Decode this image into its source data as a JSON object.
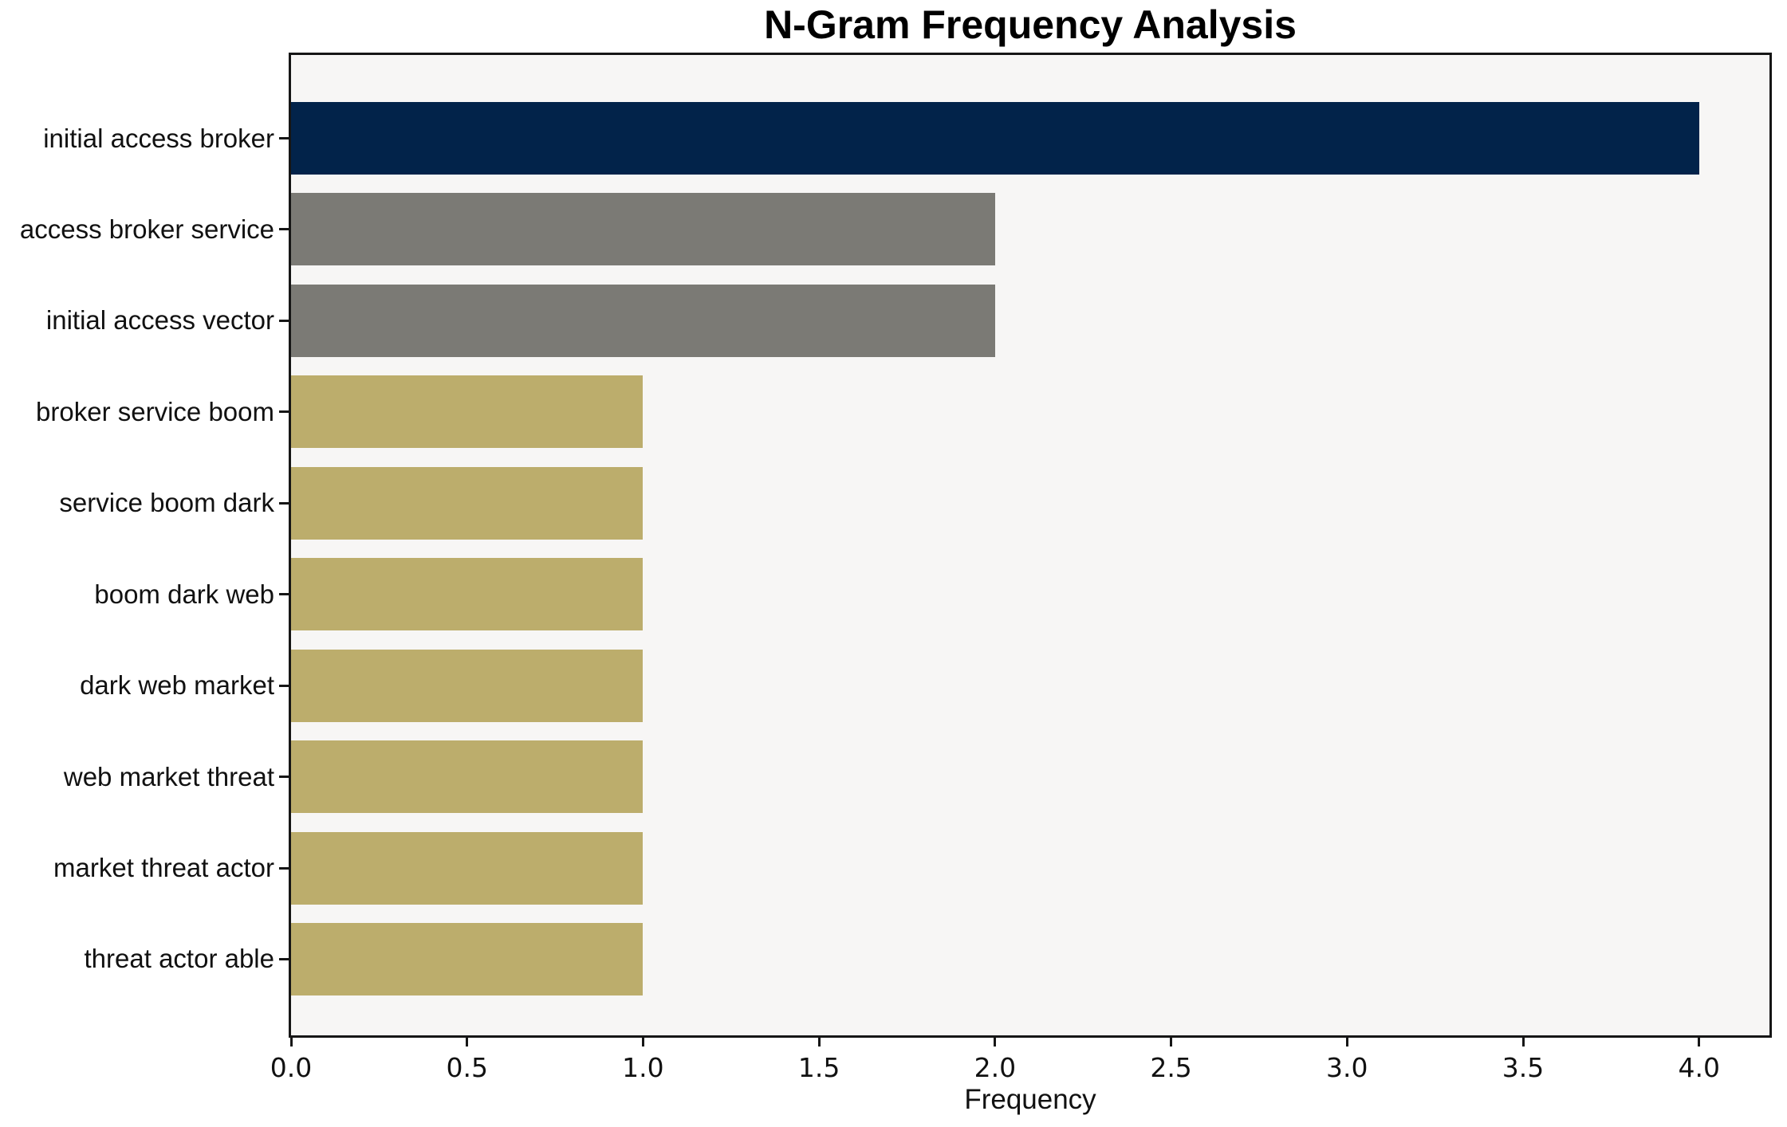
{
  "chart_data": {
    "type": "bar",
    "orientation": "horizontal",
    "title": "N-Gram Frequency Analysis",
    "xlabel": "Frequency",
    "ylabel": "",
    "categories": [
      "initial access broker",
      "access broker service",
      "initial access vector",
      "broker service boom",
      "service boom dark",
      "boom dark web",
      "dark web market",
      "web market threat",
      "market threat actor",
      "threat actor able"
    ],
    "values": [
      4,
      2,
      2,
      1,
      1,
      1,
      1,
      1,
      1,
      1
    ],
    "bar_colors": [
      "#02234A",
      "#7B7A75",
      "#7B7A75",
      "#BCAD6C",
      "#BCAD6C",
      "#BCAD6C",
      "#BCAD6C",
      "#BCAD6C",
      "#BCAD6C",
      "#BCAD6C"
    ],
    "xlim": [
      0,
      4.2
    ],
    "xticks": [
      0.0,
      0.5,
      1.0,
      1.5,
      2.0,
      2.5,
      3.0,
      3.5,
      4.0
    ],
    "xtick_labels": [
      "0.0",
      "0.5",
      "1.0",
      "1.5",
      "2.0",
      "2.5",
      "3.0",
      "3.5",
      "4.0"
    ],
    "grid": false,
    "legend_visible": false,
    "plot_background": "#F7F6F5",
    "figure_background": "#FFFFFF",
    "accent_color_max": "#02234A",
    "accent_color_mid": "#7B7A75",
    "accent_color_base": "#BCAD6C"
  }
}
